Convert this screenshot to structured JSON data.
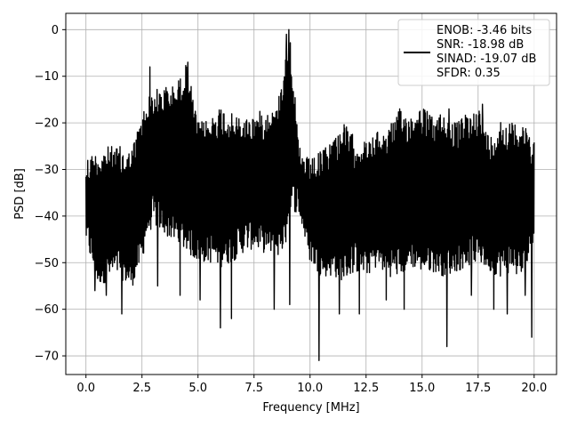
{
  "chart_data": {
    "type": "line",
    "title": "",
    "xlabel": "Frequency [MHz]",
    "ylabel": "PSD [dB]",
    "xlim": [
      -0.9,
      21.0
    ],
    "ylim": [
      -74,
      3.5
    ],
    "grid": true,
    "x_ticks": [
      0.0,
      2.5,
      5.0,
      7.5,
      10.0,
      12.5,
      15.0,
      17.5,
      20.0
    ],
    "x_tick_labels": [
      "0.0",
      "2.5",
      "5.0",
      "7.5",
      "10.0",
      "12.5",
      "15.0",
      "17.5",
      "20.0"
    ],
    "y_ticks": [
      0,
      -10,
      -20,
      -30,
      -40,
      -50,
      -60,
      -70
    ],
    "y_tick_labels": [
      "0",
      "−10",
      "−20",
      "−30",
      "−40",
      "−50",
      "−60",
      "−70"
    ],
    "legend_position": "top-right",
    "legend_lines": [
      "ENOB: -3.46 bits",
      "SNR: -18.98 dB",
      "SINAD: -19.07 dB",
      "SFDR: 0.35"
    ],
    "line_color": "#000000",
    "x_range": [
      0.0,
      20.0
    ],
    "envelope": {
      "x": [
        0.0,
        0.5,
        1.0,
        1.5,
        2.0,
        2.5,
        2.7,
        3.0,
        3.5,
        4.0,
        4.5,
        5.0,
        5.5,
        6.0,
        6.5,
        7.0,
        7.5,
        8.0,
        8.5,
        8.9,
        9.1,
        9.5,
        10.0,
        10.5,
        11.0,
        11.5,
        12.0,
        12.5,
        13.0,
        13.5,
        14.0,
        14.5,
        15.0,
        15.5,
        16.0,
        16.5,
        17.0,
        17.5,
        18.0,
        18.5,
        19.0,
        19.5,
        20.0
      ],
      "upper": [
        -27,
        -26,
        -25,
        -25,
        -26,
        -18,
        -15,
        -13,
        -12,
        -12,
        -7,
        -20,
        -19,
        -16,
        -18,
        -19,
        -18,
        -17,
        -17,
        -5,
        0,
        -25,
        -28,
        -26,
        -23,
        -20,
        -23,
        -24,
        -22,
        -21,
        -17,
        -18,
        -16,
        -19,
        -17,
        -20,
        -18,
        -16,
        -23,
        -19,
        -20,
        -19,
        -23
      ],
      "lower": [
        -46,
        -55,
        -54,
        -53,
        -56,
        -50,
        -45,
        -42,
        -44,
        -46,
        -48,
        -50,
        -50,
        -51,
        -50,
        -48,
        -47,
        -48,
        -49,
        -47,
        -38,
        -40,
        -50,
        -53,
        -53,
        -54,
        -52,
        -53,
        -51,
        -53,
        -53,
        -51,
        -52,
        -52,
        -53,
        -52,
        -51,
        -50,
        -52,
        -53,
        -52,
        -54,
        -45
      ]
    },
    "spikes_down": [
      [
        0.4,
        -56
      ],
      [
        0.9,
        -57
      ],
      [
        1.6,
        -61
      ],
      [
        3.2,
        -55
      ],
      [
        4.2,
        -57
      ],
      [
        5.1,
        -58
      ],
      [
        6.0,
        -64
      ],
      [
        6.5,
        -62
      ],
      [
        8.4,
        -60
      ],
      [
        9.1,
        -59
      ],
      [
        10.4,
        -71
      ],
      [
        11.3,
        -61
      ],
      [
        12.2,
        -61
      ],
      [
        13.4,
        -58
      ],
      [
        14.2,
        -60
      ],
      [
        16.1,
        -68
      ],
      [
        17.2,
        -57
      ],
      [
        18.2,
        -60
      ],
      [
        18.8,
        -61
      ],
      [
        19.6,
        -57
      ],
      [
        19.9,
        -66
      ]
    ],
    "spikes_up": [
      [
        2.85,
        -8
      ],
      [
        4.55,
        -7
      ],
      [
        8.95,
        -1
      ],
      [
        9.05,
        0
      ],
      [
        16.2,
        -17
      ],
      [
        17.7,
        -16
      ]
    ]
  }
}
